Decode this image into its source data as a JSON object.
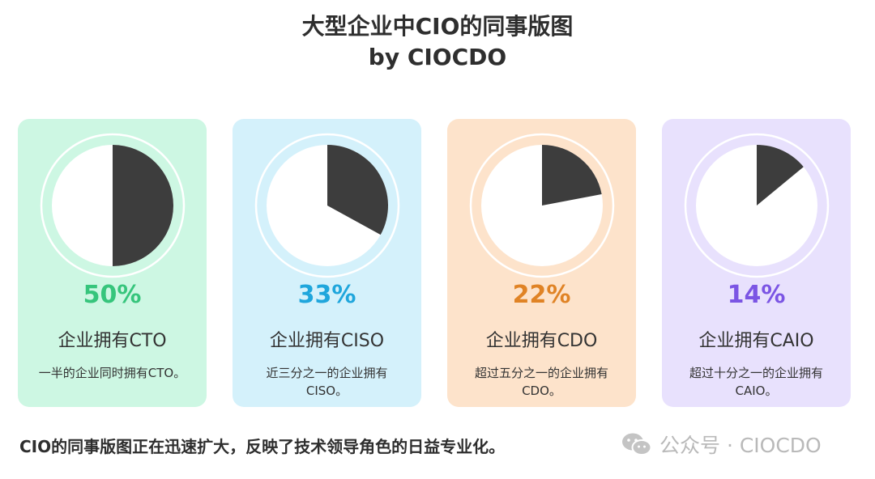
{
  "title_line1": "大型企业中CIO的同事版图",
  "title_line2": "by CIOCDO",
  "chart_data": {
    "type": "pie",
    "charts": [
      {
        "percent_label": "50%",
        "value": 50,
        "label": "企业拥有CTO",
        "description": "一半的企业同时拥有CTO。",
        "bg_color": "#cdf7e3",
        "accent_color": "#36c57c"
      },
      {
        "percent_label": "33%",
        "value": 33,
        "label": "企业拥有CISO",
        "description": "近三分之一的企业拥有CISO。",
        "bg_color": "#d4f1fb",
        "accent_color": "#1fa6dc"
      },
      {
        "percent_label": "22%",
        "value": 22,
        "label": "企业拥有CDO",
        "description": "超过五分之一的企业拥有CDO。",
        "bg_color": "#fde3cb",
        "accent_color": "#e08325"
      },
      {
        "percent_label": "14%",
        "value": 14,
        "label": "企业拥有CAIO",
        "description": "超过十分之一的企业拥有CAIO。",
        "bg_color": "#e8e1fd",
        "accent_color": "#7b55e4"
      }
    ],
    "slice_color": "#3d3d3d"
  },
  "footer_text": "CIO的同事版图正在迅速扩大，反映了技术领导角色的日益专业化。",
  "watermark_text": "公众号 · CIOCDO",
  "watermark_icon": "wechat-icon"
}
